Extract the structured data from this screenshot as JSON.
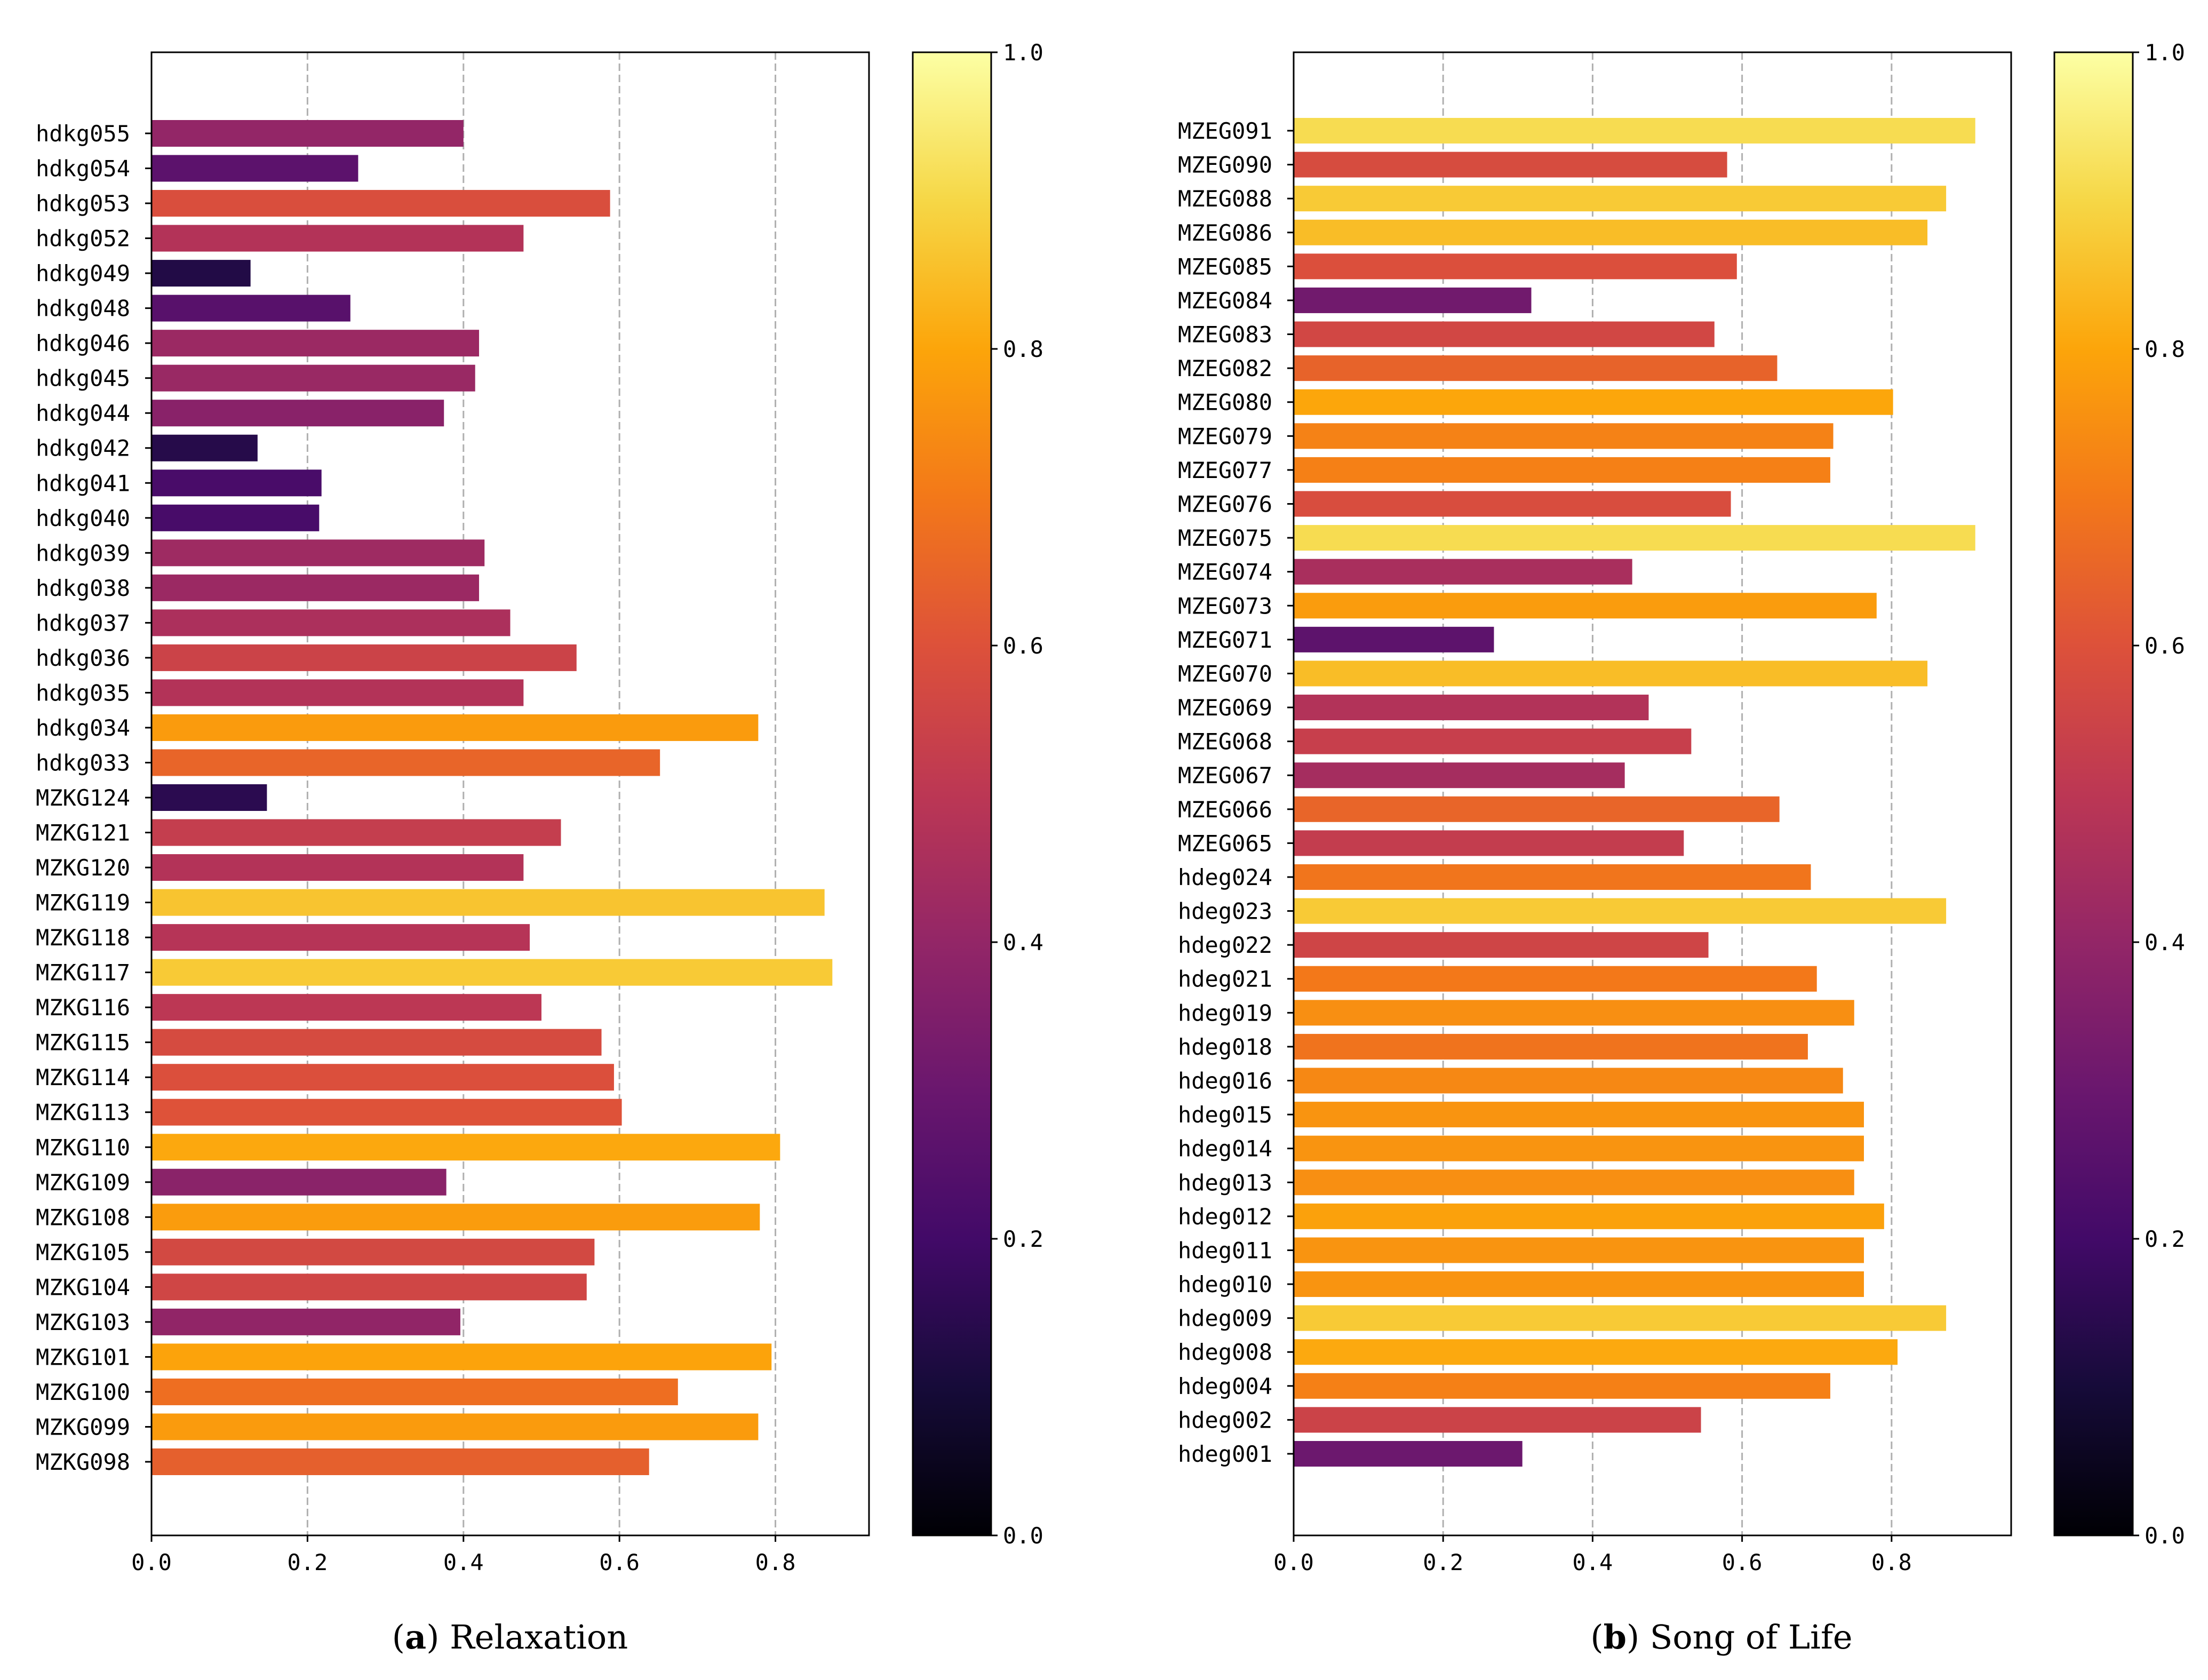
{
  "chart_data": [
    {
      "id": "a",
      "type": "bar",
      "orientation": "horizontal",
      "caption_letter": "a",
      "caption_text": "Relaxation",
      "title": "",
      "xlabel": "",
      "ylabel": "",
      "xlim": [
        0,
        0.92
      ],
      "xticks": [
        "0.0",
        "0.2",
        "0.4",
        "0.6",
        "0.8"
      ],
      "grid": "vertical dashed",
      "colormap": "inferno",
      "colorbar": {
        "range": [
          0,
          1
        ],
        "ticks": [
          "0.0",
          "0.2",
          "0.4",
          "0.6",
          "0.8",
          "1.0"
        ]
      },
      "categories": [
        "hdkg055",
        "hdkg054",
        "hdkg053",
        "hdkg052",
        "hdkg049",
        "hdkg048",
        "hdkg046",
        "hdkg045",
        "hdkg044",
        "hdkg042",
        "hdkg041",
        "hdkg040",
        "hdkg039",
        "hdkg038",
        "hdkg037",
        "hdkg036",
        "hdkg035",
        "hdkg034",
        "hdkg033",
        "MZKG124",
        "MZKG121",
        "MZKG120",
        "MZKG119",
        "MZKG118",
        "MZKG117",
        "MZKG116",
        "MZKG115",
        "MZKG114",
        "MZKG113",
        "MZKG110",
        "MZKG109",
        "MZKG108",
        "MZKG105",
        "MZKG104",
        "MZKG103",
        "MZKG101",
        "MZKG100",
        "MZKG099",
        "MZKG098"
      ],
      "values": [
        0.4,
        0.265,
        0.588,
        0.477,
        0.127,
        0.255,
        0.42,
        0.415,
        0.375,
        0.136,
        0.218,
        0.215,
        0.427,
        0.42,
        0.46,
        0.545,
        0.477,
        0.778,
        0.652,
        0.148,
        0.525,
        0.477,
        0.863,
        0.485,
        0.873,
        0.5,
        0.577,
        0.593,
        0.603,
        0.806,
        0.378,
        0.78,
        0.568,
        0.558,
        0.396,
        0.795,
        0.675,
        0.778,
        0.638
      ]
    },
    {
      "id": "b",
      "type": "bar",
      "orientation": "horizontal",
      "caption_letter": "b",
      "caption_text": "Song of Life",
      "title": "",
      "xlabel": "",
      "ylabel": "",
      "xlim": [
        0,
        0.96
      ],
      "xticks": [
        "0.0",
        "0.2",
        "0.4",
        "0.6",
        "0.8"
      ],
      "grid": "vertical dashed",
      "colormap": "inferno",
      "colorbar": {
        "range": [
          0,
          1
        ],
        "ticks": [
          "0.0",
          "0.2",
          "0.4",
          "0.6",
          "0.8",
          "1.0"
        ]
      },
      "categories": [
        "MZEG091",
        "MZEG090",
        "MZEG088",
        "MZEG086",
        "MZEG085",
        "MZEG084",
        "MZEG083",
        "MZEG082",
        "MZEG080",
        "MZEG079",
        "MZEG077",
        "MZEG076",
        "MZEG075",
        "MZEG074",
        "MZEG073",
        "MZEG071",
        "MZEG070",
        "MZEG069",
        "MZEG068",
        "MZEG067",
        "MZEG066",
        "MZEG065",
        "hdeg024",
        "hdeg023",
        "hdeg022",
        "hdeg021",
        "hdeg019",
        "hdeg018",
        "hdeg016",
        "hdeg015",
        "hdeg014",
        "hdeg013",
        "hdeg012",
        "hdeg011",
        "hdeg010",
        "hdeg009",
        "hdeg008",
        "hdeg004",
        "hdeg002",
        "hdeg001"
      ],
      "values": [
        0.912,
        0.58,
        0.873,
        0.848,
        0.593,
        0.318,
        0.563,
        0.647,
        0.802,
        0.722,
        0.718,
        0.585,
        0.912,
        0.453,
        0.78,
        0.268,
        0.848,
        0.475,
        0.532,
        0.443,
        0.65,
        0.522,
        0.692,
        0.873,
        0.555,
        0.7,
        0.75,
        0.688,
        0.735,
        0.763,
        0.763,
        0.75,
        0.79,
        0.763,
        0.763,
        0.873,
        0.808,
        0.718,
        0.545,
        0.306
      ]
    }
  ]
}
